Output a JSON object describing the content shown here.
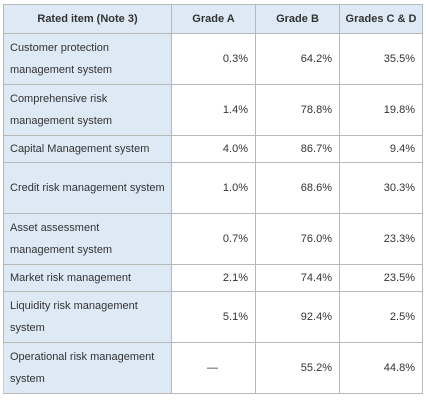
{
  "table": {
    "headers": [
      "Rated item (Note 3)",
      "Grade A",
      "Grade B",
      "Grades C & D"
    ],
    "rows": [
      {
        "label": "Customer protection management system",
        "grade_a": "0.3%",
        "grade_b": "64.2%",
        "grade_cd": "35.5%"
      },
      {
        "label": "Comprehensive risk management system",
        "grade_a": "1.4%",
        "grade_b": "78.8%",
        "grade_cd": "19.8%"
      },
      {
        "label": "Capital Management system",
        "grade_a": "4.0%",
        "grade_b": "86.7%",
        "grade_cd": "9.4%"
      },
      {
        "label": "Credit risk management system",
        "grade_a": "1.0%",
        "grade_b": "68.6%",
        "grade_cd": "30.3%"
      },
      {
        "label": "Asset assessment management system",
        "grade_a": "0.7%",
        "grade_b": "76.0%",
        "grade_cd": "23.3%"
      },
      {
        "label": "Market risk management",
        "grade_a": "2.1%",
        "grade_b": "74.4%",
        "grade_cd": "23.5%"
      },
      {
        "label": "Liquidity risk management system",
        "grade_a": "5.1%",
        "grade_b": "92.4%",
        "grade_cd": "2.5%"
      },
      {
        "label": "Operational risk management system",
        "grade_a": "—",
        "grade_b": "55.2%",
        "grade_cd": "44.8%"
      }
    ]
  }
}
